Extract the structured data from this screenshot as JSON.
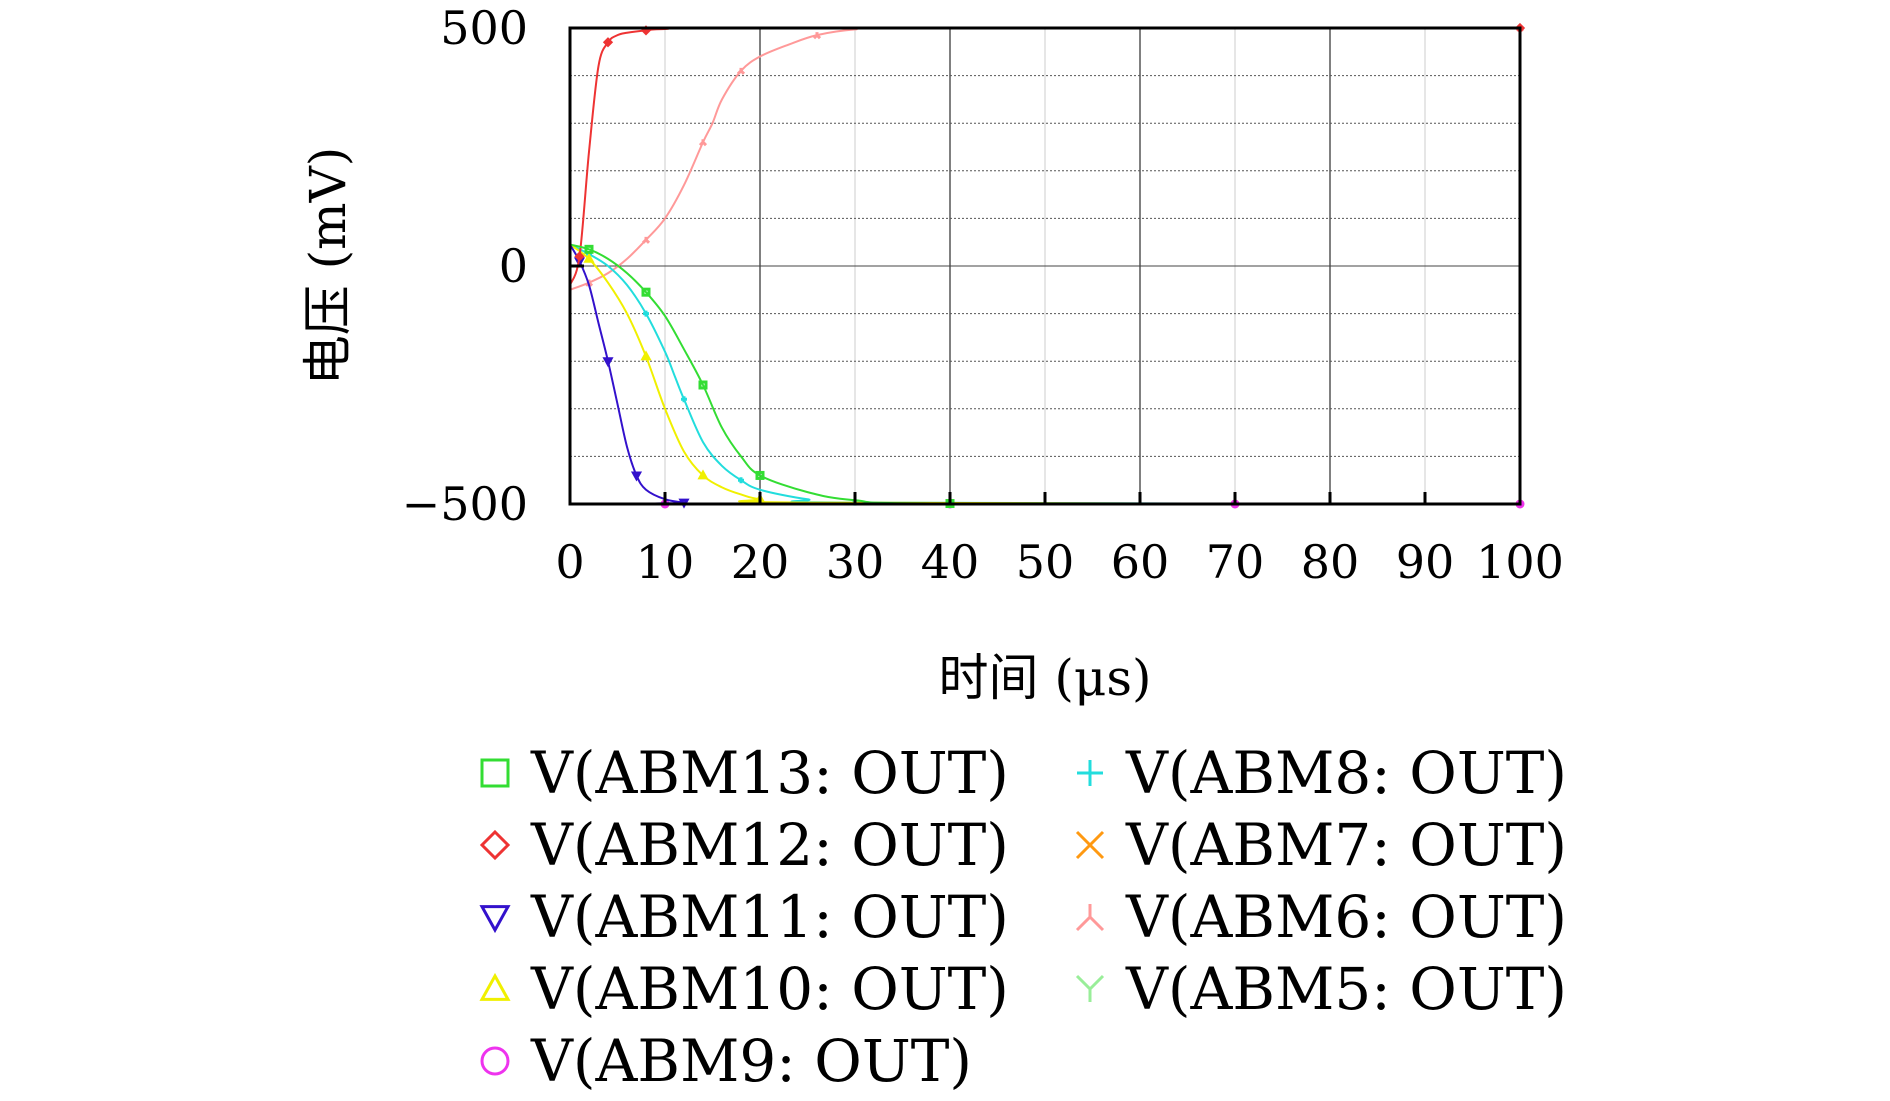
{
  "chart_data": {
    "type": "line",
    "xlabel": "时间 (μs)",
    "ylabel": "电压 (mV)",
    "xlim": [
      0,
      100
    ],
    "ylim": [
      -500,
      500
    ],
    "xticks": [
      "0",
      "10",
      "20",
      "30",
      "40",
      "50",
      "60",
      "70",
      "80",
      "90",
      "100"
    ],
    "yticks": [
      "500",
      "0",
      "−500"
    ],
    "grid": true,
    "legend_position": "bottom",
    "series": [
      {
        "name": "V(ABM13: OUT)",
        "color": "#33dd33",
        "marker": "square",
        "x": [
          0,
          2,
          4,
          6,
          8,
          10,
          12,
          14,
          16,
          18,
          20,
          25,
          30,
          40,
          100
        ],
        "y": [
          45,
          35,
          15,
          -15,
          -55,
          -105,
          -175,
          -250,
          -340,
          -400,
          -440,
          -475,
          -492,
          -499,
          -500
        ]
      },
      {
        "name": "V(ABM12: OUT)",
        "color": "#ee3333",
        "marker": "diamond",
        "x": [
          0,
          1,
          2,
          3,
          4,
          5,
          6,
          8,
          10,
          20,
          100
        ],
        "y": [
          -40,
          20,
          240,
          420,
          470,
          485,
          490,
          495,
          498,
          500,
          500
        ]
      },
      {
        "name": "V(ABM11: OUT)",
        "color": "#3311cc",
        "marker": "triangle-down",
        "x": [
          0,
          1,
          2,
          3,
          4,
          5,
          6,
          7,
          8,
          10,
          12,
          15,
          100
        ],
        "y": [
          45,
          10,
          -40,
          -120,
          -200,
          -290,
          -380,
          -440,
          -470,
          -490,
          -497,
          -500,
          -500
        ]
      },
      {
        "name": "V(ABM10: OUT)",
        "color": "#f0f000",
        "marker": "triangle-up",
        "x": [
          0,
          2,
          4,
          6,
          8,
          10,
          12,
          14,
          16,
          18,
          20,
          25,
          100
        ],
        "y": [
          45,
          15,
          -35,
          -100,
          -190,
          -300,
          -390,
          -440,
          -465,
          -480,
          -490,
          -497,
          -500
        ]
      },
      {
        "name": "V(ABM9: OUT)",
        "color": "#ee33ee",
        "marker": "circle",
        "x": [
          0,
          10,
          20,
          30,
          40,
          50,
          60,
          70,
          80,
          90,
          100
        ],
        "y": [
          -500,
          -500,
          -500,
          -500,
          -500,
          -500,
          -500,
          -500,
          -500,
          -500,
          -500
        ]
      },
      {
        "name": "V(ABM8: OUT)",
        "color": "#22dddd",
        "marker": "plus",
        "x": [
          0,
          2,
          4,
          6,
          8,
          10,
          11,
          12,
          14,
          16,
          18,
          20,
          25,
          30,
          100
        ],
        "y": [
          45,
          25,
          0,
          -40,
          -100,
          -180,
          -230,
          -280,
          -370,
          -420,
          -450,
          -470,
          -490,
          -497,
          -500
        ]
      },
      {
        "name": "V(ABM7: OUT)",
        "color": "#ff9911",
        "marker": "cross",
        "x": [
          0,
          10,
          20,
          30,
          40,
          50,
          60,
          70,
          80,
          90,
          100
        ],
        "y": [
          -500,
          -500,
          -500,
          -500,
          -500,
          -500,
          -500,
          -500,
          -500,
          -500,
          -500
        ]
      },
      {
        "name": "V(ABM6: OUT)",
        "color": "#ff9999",
        "marker": "tri-down",
        "x": [
          0,
          2,
          4,
          6,
          8,
          10,
          12,
          14,
          15,
          16,
          18,
          20,
          23,
          26,
          30,
          35,
          100
        ],
        "y": [
          -50,
          -35,
          -15,
          15,
          55,
          100,
          170,
          260,
          300,
          350,
          410,
          440,
          465,
          485,
          497,
          500,
          500
        ]
      },
      {
        "name": "V(ABM5: OUT)",
        "color": "#99ee99",
        "marker": "tri-up",
        "x": [
          0,
          10,
          20,
          30,
          40,
          50,
          60,
          70,
          80,
          90,
          100
        ],
        "y": [
          -500,
          -500,
          -500,
          -500,
          -500,
          -500,
          -500,
          -500,
          -500,
          -500,
          -500
        ]
      }
    ]
  }
}
